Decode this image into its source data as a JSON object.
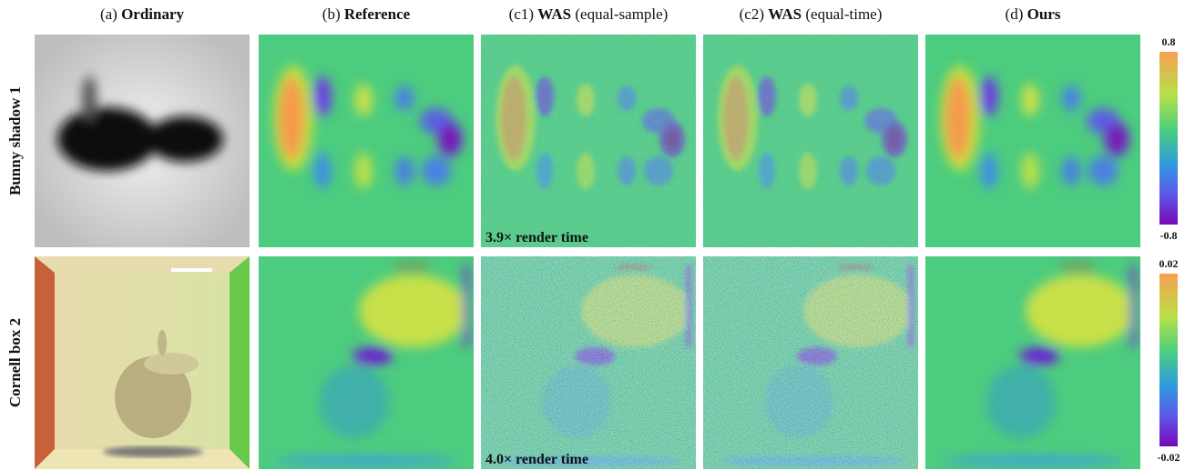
{
  "columns": [
    {
      "prefix": "(a)",
      "bold": "Ordinary",
      "suffix": ""
    },
    {
      "prefix": "(b)",
      "bold": "Reference",
      "suffix": ""
    },
    {
      "prefix": "(c1)",
      "bold": "WAS",
      "suffix": "(equal-sample)"
    },
    {
      "prefix": "(c2)",
      "bold": "WAS",
      "suffix": "(equal-time)"
    },
    {
      "prefix": "(d)",
      "bold": "Ours",
      "suffix": ""
    }
  ],
  "rows": [
    {
      "label": "Bunny shadow 1",
      "annotation": "3.9× render time",
      "colorbar_max": 0.8,
      "colorbar_min": -0.8
    },
    {
      "label": "Cornell box 2",
      "annotation": "4.0× render time",
      "colorbar_max": 0.02,
      "colorbar_min": -0.02
    }
  ]
}
